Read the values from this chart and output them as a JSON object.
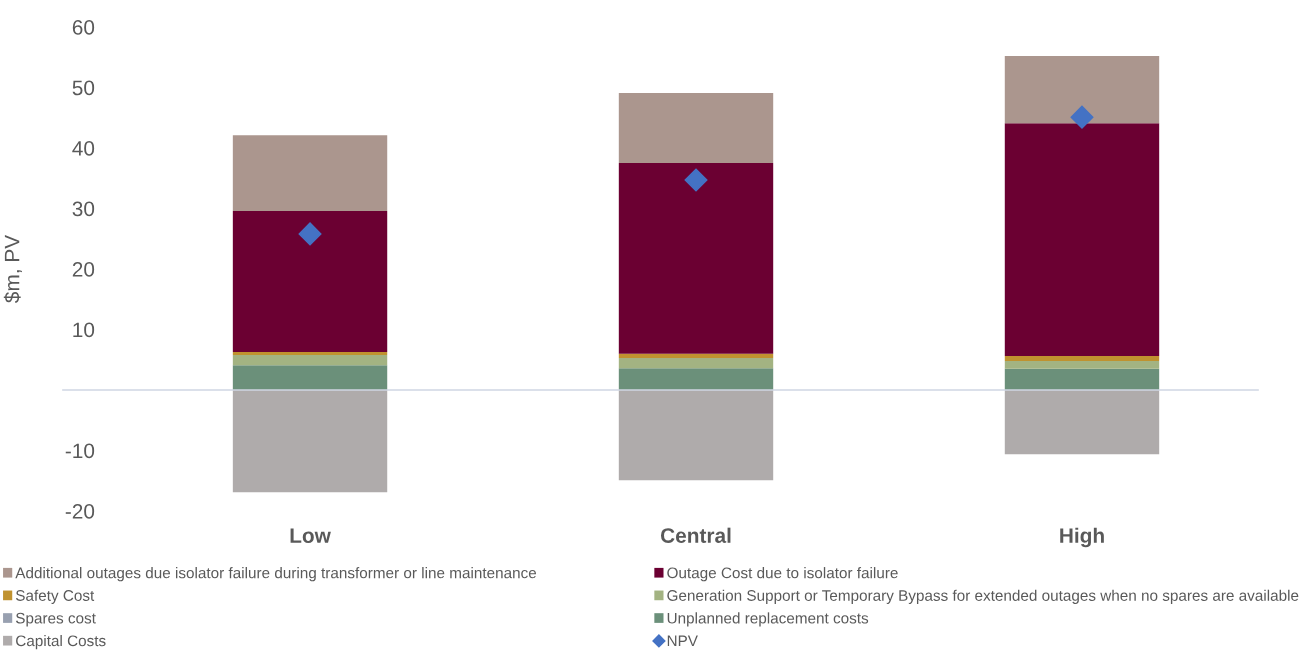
{
  "chart_data": {
    "type": "bar",
    "stacked": true,
    "ylabel": "$m, PV",
    "categories": [
      "Low",
      "Central",
      "High"
    ],
    "series": [
      {
        "name": "Capital Costs",
        "color": "#afabab",
        "values": [
          -16.9,
          -14.9,
          -10.6
        ]
      },
      {
        "name": "Unplanned replacement costs",
        "color": "#6b907a",
        "values": [
          4.1,
          3.6,
          3.5
        ]
      },
      {
        "name": "Spares cost",
        "color": "#98a0b0",
        "values": [
          0,
          0,
          0
        ]
      },
      {
        "name": "Generation Support or Temporary Bypass for extended outages when no spares are available",
        "color": "#a3b382",
        "values": [
          1.7,
          1.7,
          1.3
        ]
      },
      {
        "name": "Safety Cost",
        "color": "#c0922f",
        "values": [
          0.5,
          0.7,
          0.8
        ]
      },
      {
        "name": "Outage Cost due to isolator failure",
        "color": "#6b0032",
        "values": [
          23.3,
          31.5,
          38.5
        ]
      },
      {
        "name": "Additional outages due isolator failure during transformer or line maintenance",
        "color": "#ab968e",
        "values": [
          12.5,
          11.6,
          11.1
        ]
      },
      {
        "name": "NPV",
        "color": "#4472c4",
        "type": "scatter",
        "marker": "diamond",
        "values": [
          25.8,
          34.7,
          45.1
        ]
      }
    ],
    "ylim": [
      -20,
      60
    ],
    "yticks": [
      -20,
      -10,
      10,
      20,
      30,
      40,
      50,
      60
    ],
    "grid": false,
    "legend": "bottom"
  }
}
